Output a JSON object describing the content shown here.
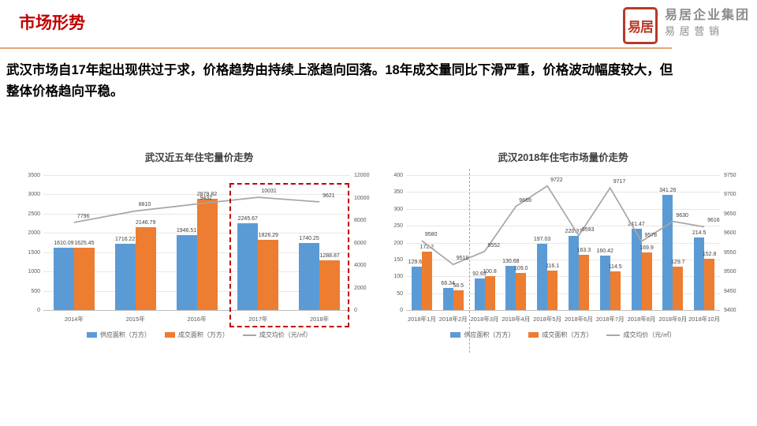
{
  "header": {
    "title": "市场形势"
  },
  "logo": {
    "seal": "易居",
    "line1": "易居企业集团",
    "line2": "易 居 营 销"
  },
  "summary": {
    "line1": "武汉市场自17年起出现供过于求，价格趋势由持续上涨趋向回落。18年成交量同比下滑严重，价格波动幅度较大，但",
    "line2": "整体价格趋向平稳。"
  },
  "chart_data": [
    {
      "type": "bar",
      "title": "武汉近五年住宅量价走势",
      "categories": [
        "2014年",
        "2015年",
        "2016年",
        "2017年",
        "2018年"
      ],
      "series": [
        {
          "name": "供应面积（万方）",
          "kind": "bar",
          "color": "#5b9bd5",
          "axis": "left",
          "values": [
            1610.09,
            1716.22,
            1946.51,
            2245.67,
            1740.25
          ],
          "labels": [
            "1610.09",
            "1716.22",
            "1946.51",
            "2245.67",
            "1740.25"
          ]
        },
        {
          "name": "成交面积（万方）",
          "kind": "bar",
          "color": "#ed7d31",
          "axis": "left",
          "values": [
            1625.45,
            2146.79,
            2879.82,
            1826.29,
            1288.87
          ],
          "labels": [
            "1625.45",
            "2146.79",
            "2879.82",
            "1826.29",
            "1288.87"
          ]
        },
        {
          "name": "成交均价（元/㎡）",
          "kind": "line",
          "color": "#a6a6a6",
          "axis": "right",
          "values": [
            7796,
            8810,
            9432,
            10031,
            9621
          ],
          "labels": [
            "7796",
            "8810",
            "9432",
            "10031",
            "9621"
          ]
        }
      ],
      "left_axis": {
        "min": 0,
        "max": 3500,
        "step": 500
      },
      "right_axis": {
        "min": 0,
        "max": 12000,
        "step": 2000
      },
      "highlight_box": {
        "from_index": 3,
        "to_index": 4
      },
      "legend_position": "bottom",
      "grid": true
    },
    {
      "type": "bar",
      "title": "武汉2018年住宅市场量价走势",
      "categories": [
        "2018年1月",
        "2018年2月",
        "2018年3月",
        "2018年4月",
        "2018年5月",
        "2018年6月",
        "2018年7月",
        "2018年8月",
        "2018年9月",
        "2018年10月"
      ],
      "series": [
        {
          "name": "供应面积（万方）",
          "kind": "bar",
          "color": "#5b9bd5",
          "axis": "left",
          "values": [
            129.61,
            66.34,
            92.63,
            130.68,
            197.03,
            220.37,
            160.42,
            241.47,
            341.26,
            214.5
          ],
          "labels": [
            "129.61",
            "66.34",
            "92.63",
            "130.68",
            "197.03",
            "220.37",
            "160.42",
            "241.47",
            "341.26",
            "214.5"
          ]
        },
        {
          "name": "成交面积（万方）",
          "kind": "bar",
          "color": "#ed7d31",
          "axis": "left",
          "values": [
            172.2,
            58.5,
            100.8,
            109.0,
            116.1,
            163.3,
            114.5,
            169.9,
            129.7,
            152.8
          ],
          "labels": [
            "172.2",
            "58.5",
            "100.8",
            "109.0",
            "116.1",
            "163.3",
            "114.5",
            "169.9",
            "129.7",
            "152.8"
          ]
        },
        {
          "name": "成交均价（元/㎡）",
          "kind": "line",
          "color": "#a6a6a6",
          "axis": "right",
          "values": [
            9580,
            9518,
            9552,
            9669,
            9722,
            9593,
            9717,
            9578,
            9630,
            9616
          ],
          "labels": [
            "9580",
            "9518",
            "9552",
            "9669",
            "9722",
            "9593",
            "9717",
            "9578",
            "9630",
            "9616"
          ]
        }
      ],
      "left_axis": {
        "min": 0,
        "max": 400,
        "step": 50
      },
      "right_axis": {
        "min": 9400,
        "max": 9750,
        "step": 50
      },
      "separator_after_index": 1,
      "legend_position": "bottom",
      "grid": true
    }
  ]
}
